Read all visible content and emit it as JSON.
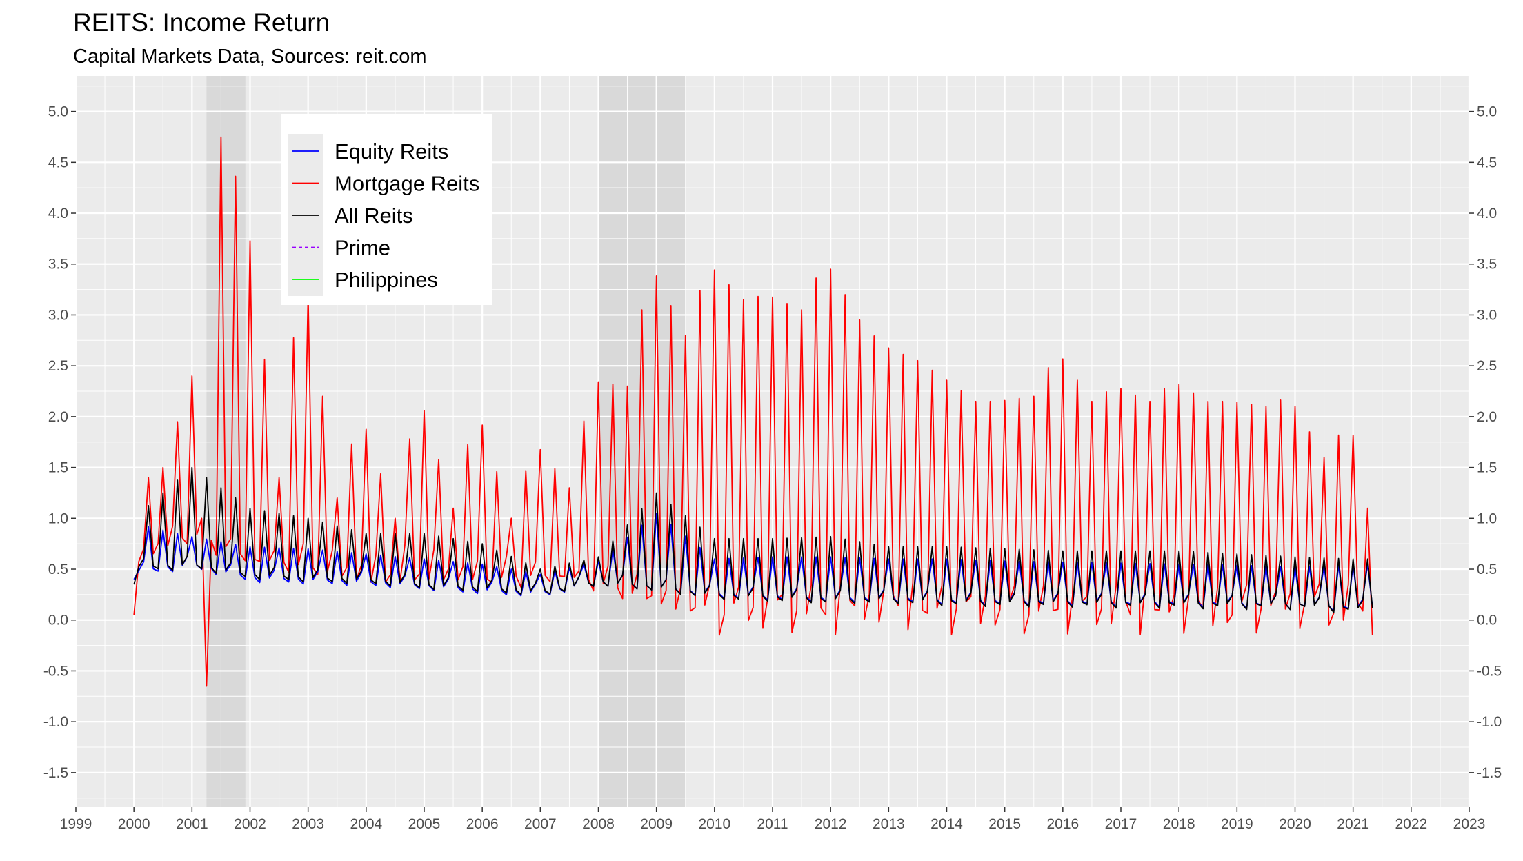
{
  "chart_data": {
    "type": "line",
    "title": "REITS: Income Return",
    "subtitle": "Capital Markets Data, Sources: reit.com",
    "xlabel": "",
    "ylabel": "",
    "xlim": [
      1999,
      2023
    ],
    "ylim": [
      -1.5,
      5.0
    ],
    "x_ticks": [
      "1999",
      "2000",
      "2001",
      "2002",
      "2003",
      "2004",
      "2005",
      "2006",
      "2007",
      "2008",
      "2009",
      "2010",
      "2011",
      "2012",
      "2013",
      "2014",
      "2015",
      "2016",
      "2017",
      "2018",
      "2019",
      "2020",
      "2021",
      "2022",
      "2023"
    ],
    "y_ticks": [
      "-1.5",
      "-1.0",
      "-0.5",
      "0.0",
      "0.5",
      "1.0",
      "1.5",
      "2.0",
      "2.5",
      "3.0",
      "3.5",
      "4.0",
      "4.5",
      "5.0"
    ],
    "grid": true,
    "secondary_y_axis": true,
    "recession_bands": [
      [
        2001.25,
        2001.92
      ],
      [
        2008.0,
        2009.5
      ]
    ],
    "legend_position": "top-left",
    "colors": {
      "equity": "#0000ff",
      "mortgage": "#ff0000",
      "all": "#000000",
      "prime": "#9900ff",
      "philippines": "#00ff00",
      "panel": "#ebebeb",
      "recession": "#d9d9d9"
    },
    "series": [
      {
        "name": "Equity Reits",
        "key": "equity",
        "dates": "monthly, 2000-01 to 2021-05",
        "pattern": "spike every 3rd month",
        "base_pairs": [
          [
            2000,
            0.48
          ],
          [
            2001,
            0.55
          ],
          [
            2002,
            0.42
          ],
          [
            2003,
            0.4
          ],
          [
            2004,
            0.38
          ],
          [
            2005,
            0.34
          ],
          [
            2006,
            0.3
          ],
          [
            2007,
            0.27
          ],
          [
            2008,
            0.38
          ],
          [
            2009,
            0.33
          ],
          [
            2010,
            0.26
          ],
          [
            2011,
            0.24
          ],
          [
            2012,
            0.22
          ],
          [
            2013,
            0.22
          ],
          [
            2014,
            0.2
          ],
          [
            2015,
            0.19
          ],
          [
            2016,
            0.19
          ],
          [
            2017,
            0.18
          ],
          [
            2018,
            0.18
          ],
          [
            2019,
            0.17
          ],
          [
            2020,
            0.16
          ],
          [
            2021,
            0.13
          ]
        ],
        "peak_pairs": [
          [
            2000,
            0.95
          ],
          [
            2001,
            0.82
          ],
          [
            2002,
            0.72
          ],
          [
            2003,
            0.7
          ],
          [
            2004,
            0.65
          ],
          [
            2005,
            0.6
          ],
          [
            2006,
            0.55
          ],
          [
            2007,
            0.45
          ],
          [
            2008,
            0.58
          ],
          [
            2009,
            1.05
          ],
          [
            2010,
            0.6
          ],
          [
            2011,
            0.62
          ],
          [
            2012,
            0.62
          ],
          [
            2013,
            0.6
          ],
          [
            2014,
            0.6
          ],
          [
            2015,
            0.58
          ],
          [
            2016,
            0.57
          ],
          [
            2017,
            0.56
          ],
          [
            2018,
            0.55
          ],
          [
            2019,
            0.54
          ],
          [
            2020,
            0.52
          ],
          [
            2021,
            0.55
          ]
        ]
      },
      {
        "name": "Mortgage Reits",
        "key": "mortgage",
        "dates": "monthly, 2000-01 to 2021-05",
        "pattern": "spike every 3rd month",
        "base_pairs": [
          [
            2000,
            0.7
          ],
          [
            2001,
            0.9
          ],
          [
            2002,
            0.6
          ],
          [
            2003,
            0.6
          ],
          [
            2004,
            0.55
          ],
          [
            2005,
            0.6
          ],
          [
            2006,
            0.5
          ],
          [
            2007,
            0.45
          ],
          [
            2008,
            0.4
          ],
          [
            2009,
            0.3
          ],
          [
            2010,
            0.2
          ],
          [
            2011,
            0.2
          ],
          [
            2012,
            0.2
          ],
          [
            2013,
            0.25
          ],
          [
            2014,
            0.2
          ],
          [
            2015,
            0.2
          ],
          [
            2016,
            0.2
          ],
          [
            2017,
            0.2
          ],
          [
            2018,
            0.2
          ],
          [
            2019,
            0.2
          ],
          [
            2020,
            0.25
          ],
          [
            2021,
            0.2
          ]
        ],
        "peak_pairs": [
          [
            2000.0,
            1.3
          ],
          [
            2000.5,
            1.5
          ],
          [
            2001.0,
            2.4
          ],
          [
            2001.25,
            -0.65
          ],
          [
            2001.5,
            4.75
          ],
          [
            2001.92,
            4.1
          ],
          [
            2002.5,
            1.4
          ],
          [
            2002.9,
            3.6
          ],
          [
            2003.5,
            1.2
          ],
          [
            2003.9,
            2.05
          ],
          [
            2004.5,
            1.0
          ],
          [
            2004.9,
            2.25
          ],
          [
            2005.5,
            1.1
          ],
          [
            2005.9,
            2.1
          ],
          [
            2006.5,
            1.0
          ],
          [
            2006.9,
            1.75
          ],
          [
            2007.5,
            1.3
          ],
          [
            2007.9,
            2.35
          ],
          [
            2008.5,
            2.3
          ],
          [
            2008.9,
            3.5
          ],
          [
            2009.5,
            2.8
          ],
          [
            2009.9,
            3.5
          ],
          [
            2010.5,
            3.15
          ],
          [
            2010.9,
            3.2
          ],
          [
            2011.5,
            3.05
          ],
          [
            2011.9,
            3.55
          ],
          [
            2012.5,
            2.95
          ],
          [
            2012.9,
            2.7
          ],
          [
            2013.5,
            2.55
          ],
          [
            2013.9,
            2.4
          ],
          [
            2014.5,
            2.15
          ],
          [
            2014.9,
            2.15
          ],
          [
            2015.5,
            2.2
          ],
          [
            2015.9,
            2.65
          ],
          [
            2016.5,
            2.15
          ],
          [
            2016.9,
            2.3
          ],
          [
            2017.5,
            2.15
          ],
          [
            2017.9,
            2.35
          ],
          [
            2018.5,
            2.15
          ],
          [
            2018.9,
            2.15
          ],
          [
            2019.5,
            2.1
          ],
          [
            2019.9,
            2.2
          ],
          [
            2020.5,
            1.6
          ],
          [
            2020.9,
            1.95
          ],
          [
            2021.2,
            1.55
          ],
          [
            2021.35,
            0.2
          ]
        ]
      },
      {
        "name": "All Reits",
        "key": "all",
        "dates": "monthly, 2000-01 to 2021-05",
        "pattern": "spike every 3rd month",
        "base_pairs": [
          [
            2000,
            0.52
          ],
          [
            2001,
            0.55
          ],
          [
            2002,
            0.45
          ],
          [
            2003,
            0.42
          ],
          [
            2004,
            0.4
          ],
          [
            2005,
            0.35
          ],
          [
            2006,
            0.32
          ],
          [
            2007,
            0.28
          ],
          [
            2008,
            0.38
          ],
          [
            2009,
            0.33
          ],
          [
            2010,
            0.25
          ],
          [
            2011,
            0.23
          ],
          [
            2012,
            0.21
          ],
          [
            2013,
            0.21
          ],
          [
            2014,
            0.19
          ],
          [
            2015,
            0.18
          ],
          [
            2016,
            0.18
          ],
          [
            2017,
            0.17
          ],
          [
            2018,
            0.17
          ],
          [
            2019,
            0.16
          ],
          [
            2020,
            0.16
          ],
          [
            2021,
            0.12
          ]
        ],
        "peak_pairs": [
          [
            2000,
            1.0
          ],
          [
            2001,
            1.5
          ],
          [
            2002,
            1.1
          ],
          [
            2003,
            1.0
          ],
          [
            2004,
            0.85
          ],
          [
            2005,
            0.85
          ],
          [
            2006,
            0.75
          ],
          [
            2007,
            0.5
          ],
          [
            2008,
            0.62
          ],
          [
            2009,
            1.25
          ],
          [
            2010,
            0.8
          ],
          [
            2011,
            0.8
          ],
          [
            2012,
            0.82
          ],
          [
            2013,
            0.72
          ],
          [
            2014,
            0.72
          ],
          [
            2015,
            0.7
          ],
          [
            2016,
            0.68
          ],
          [
            2017,
            0.68
          ],
          [
            2018,
            0.68
          ],
          [
            2019,
            0.65
          ],
          [
            2020,
            0.62
          ],
          [
            2021,
            0.6
          ]
        ]
      },
      {
        "name": "Prime",
        "key": "prime",
        "style": "dashed",
        "values": []
      },
      {
        "name": "Philippines",
        "key": "philippines",
        "values": []
      }
    ]
  }
}
